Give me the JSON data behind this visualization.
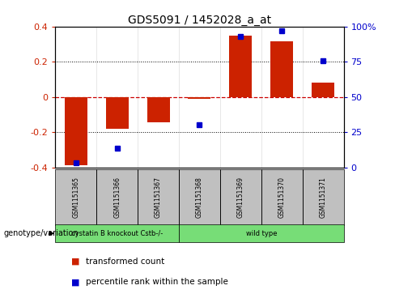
{
  "title": "GDS5091 / 1452028_a_at",
  "samples": [
    "GSM1151365",
    "GSM1151366",
    "GSM1151367",
    "GSM1151368",
    "GSM1151369",
    "GSM1151370",
    "GSM1151371"
  ],
  "bar_values": [
    -0.385,
    -0.18,
    -0.145,
    -0.01,
    0.35,
    0.315,
    0.08
  ],
  "dot_values": [
    -0.375,
    -0.29,
    null,
    -0.155,
    0.345,
    0.375,
    0.205
  ],
  "ylim": [
    -0.4,
    0.4
  ],
  "yticks_left": [
    -0.4,
    -0.2,
    0.0,
    0.2,
    0.4
  ],
  "yticks_right": [
    0,
    25,
    50,
    75,
    100
  ],
  "bar_color": "#cc2200",
  "dot_color": "#0000cc",
  "bar_width": 0.55,
  "groups": [
    {
      "label": "cystatin B knockout Cstb-/-",
      "span": [
        0,
        3
      ],
      "color": "#77dd77"
    },
    {
      "label": "wild type",
      "span": [
        3,
        7
      ],
      "color": "#77dd77"
    }
  ],
  "genotype_label": "genotype/variation",
  "legend_items": [
    {
      "color": "#cc2200",
      "label": "transformed count"
    },
    {
      "color": "#0000cc",
      "label": "percentile rank within the sample"
    }
  ],
  "bg_color": "#ffffff",
  "plot_bg_color": "#ffffff",
  "zero_line_color": "#cc0000",
  "dotted_line_color": "#000000",
  "sample_box_color": "#c0c0c0",
  "n_knockout": 3,
  "n_total": 7
}
